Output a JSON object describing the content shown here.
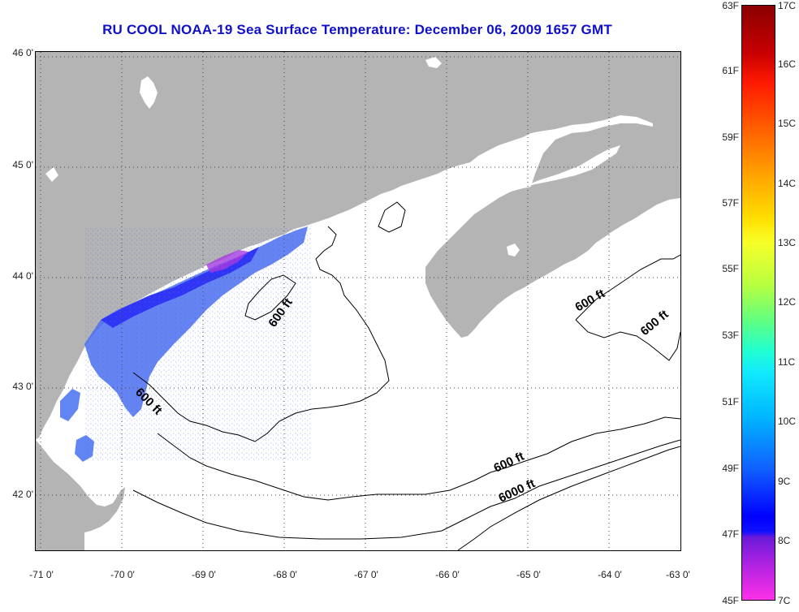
{
  "title": "RU COOL  NOAA-19  Sea Surface Temperature:  December 06, 2009 1657 GMT",
  "map": {
    "lat_ticks": [
      "46 0'",
      "45 0'",
      "44 0'",
      "43 0'",
      "42 0'"
    ],
    "lon_ticks": [
      "-71 0'",
      "-70 0'",
      "-69 0'",
      "-68 0'",
      "-67 0'",
      "-66 0'",
      "-65 0'",
      "-64 0'",
      "-63 0'"
    ],
    "contour_labels": [
      "600 ft",
      "600 ft",
      "600 ft",
      "600 ft",
      "6000 ft"
    ],
    "land_color": "#b4b4b4",
    "water_no_data_color": "#ffffff",
    "grid": "dotted"
  },
  "colorbar": {
    "fahrenheit_labels": [
      "63F",
      "61F",
      "59F",
      "57F",
      "55F",
      "53F",
      "51F",
      "49F",
      "47F",
      "45F"
    ],
    "celsius_labels": [
      "17C",
      "16C",
      "15C",
      "14C",
      "13C",
      "12C",
      "11C",
      "10C",
      "9C",
      "8C",
      "7C"
    ],
    "range_f": [
      45,
      63
    ],
    "range_c": [
      7,
      17
    ]
  }
}
